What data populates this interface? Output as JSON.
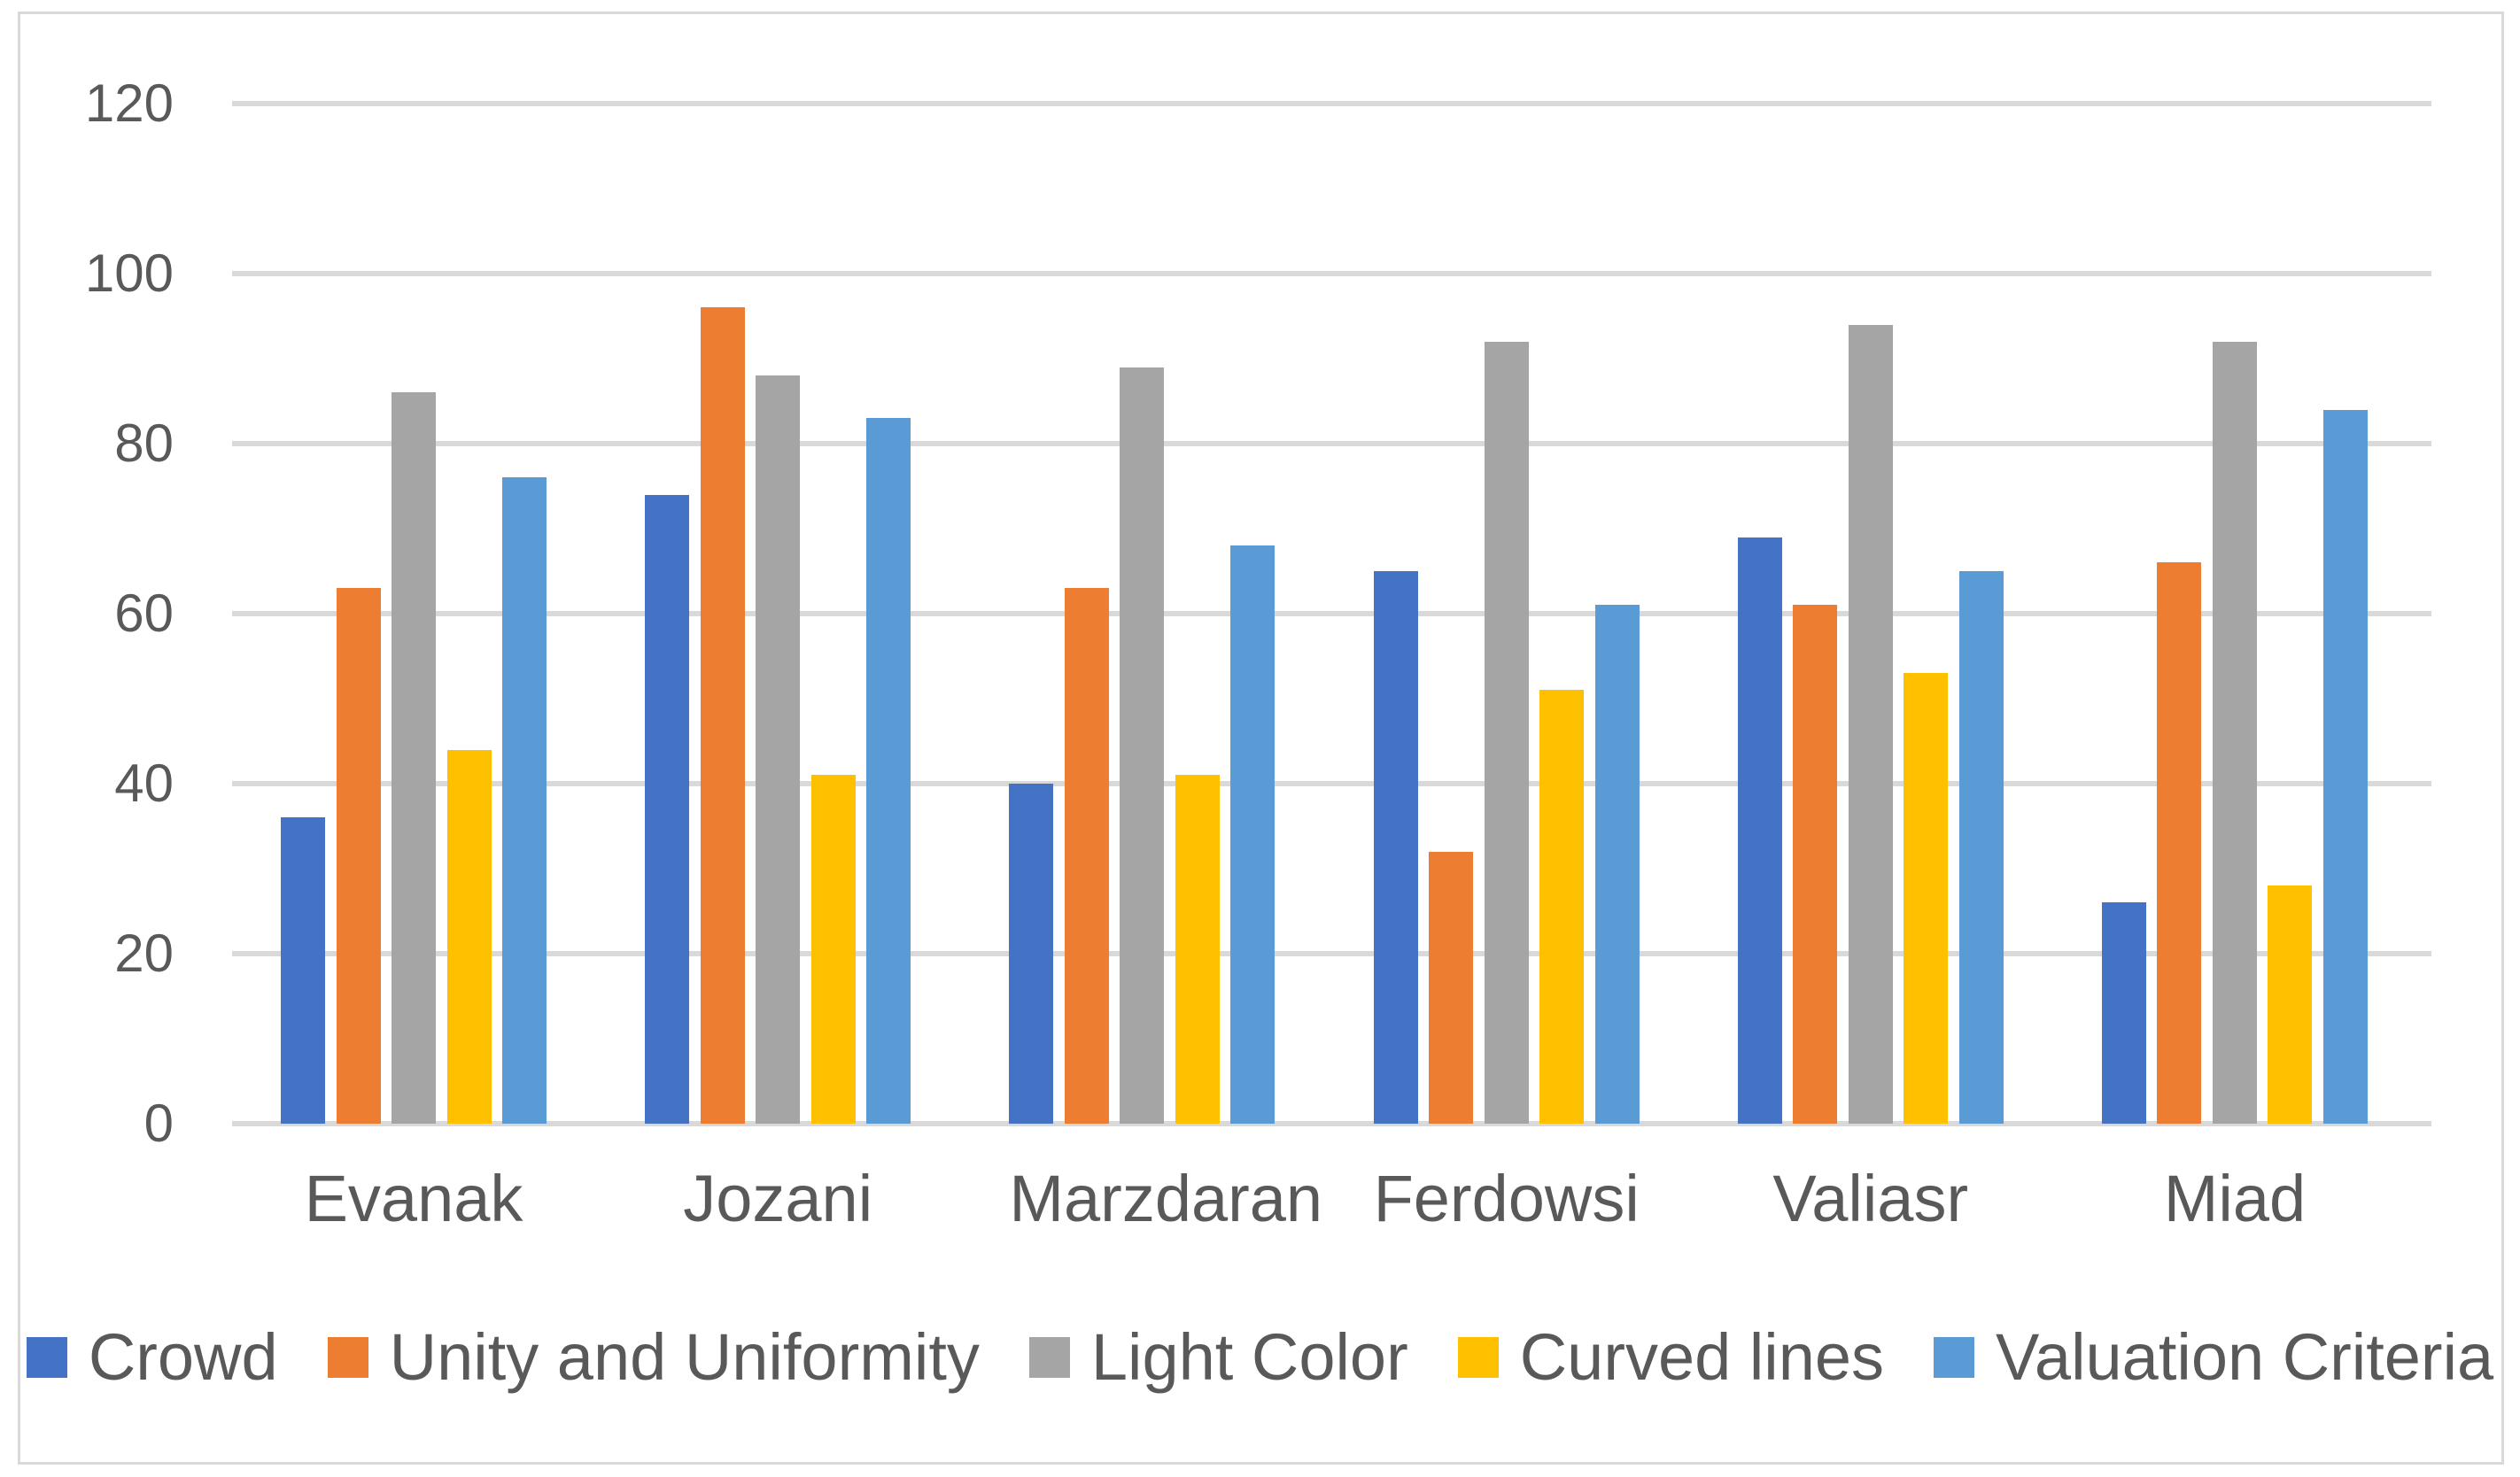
{
  "chart_data": {
    "type": "bar",
    "title": "",
    "xlabel": "",
    "ylabel": "",
    "categories": [
      "Evanak",
      "Jozani",
      "Marzdaran",
      "Ferdowsi",
      "Valiasr",
      "Miad"
    ],
    "series": [
      {
        "name": "Crowd",
        "color": "#4472C4",
        "values": [
          36,
          74,
          40,
          65,
          69,
          26
        ]
      },
      {
        "name": "Unity and Uniformity",
        "color": "#ED7D31",
        "values": [
          63,
          96,
          63,
          32,
          61,
          66
        ]
      },
      {
        "name": "Light Color",
        "color": "#A5A5A5",
        "values": [
          86,
          88,
          89,
          92,
          94,
          92
        ]
      },
      {
        "name": "Curved lines",
        "color": "#FFC000",
        "values": [
          44,
          41,
          41,
          51,
          53,
          28
        ]
      },
      {
        "name": "Valuation Criteria",
        "color": "#5B9BD5",
        "values": [
          76,
          83,
          68,
          61,
          65,
          84
        ]
      }
    ],
    "ylim": [
      0,
      120
    ],
    "y_ticks": [
      0,
      20,
      40,
      60,
      80,
      100,
      120
    ],
    "grid": "horizontal",
    "gridline_color": "#D9D9D9",
    "axis_text_color": "#595959",
    "plot_background": "#FFFFFF",
    "frame_border_color": "#D9D9D9",
    "legend_position": "bottom"
  }
}
